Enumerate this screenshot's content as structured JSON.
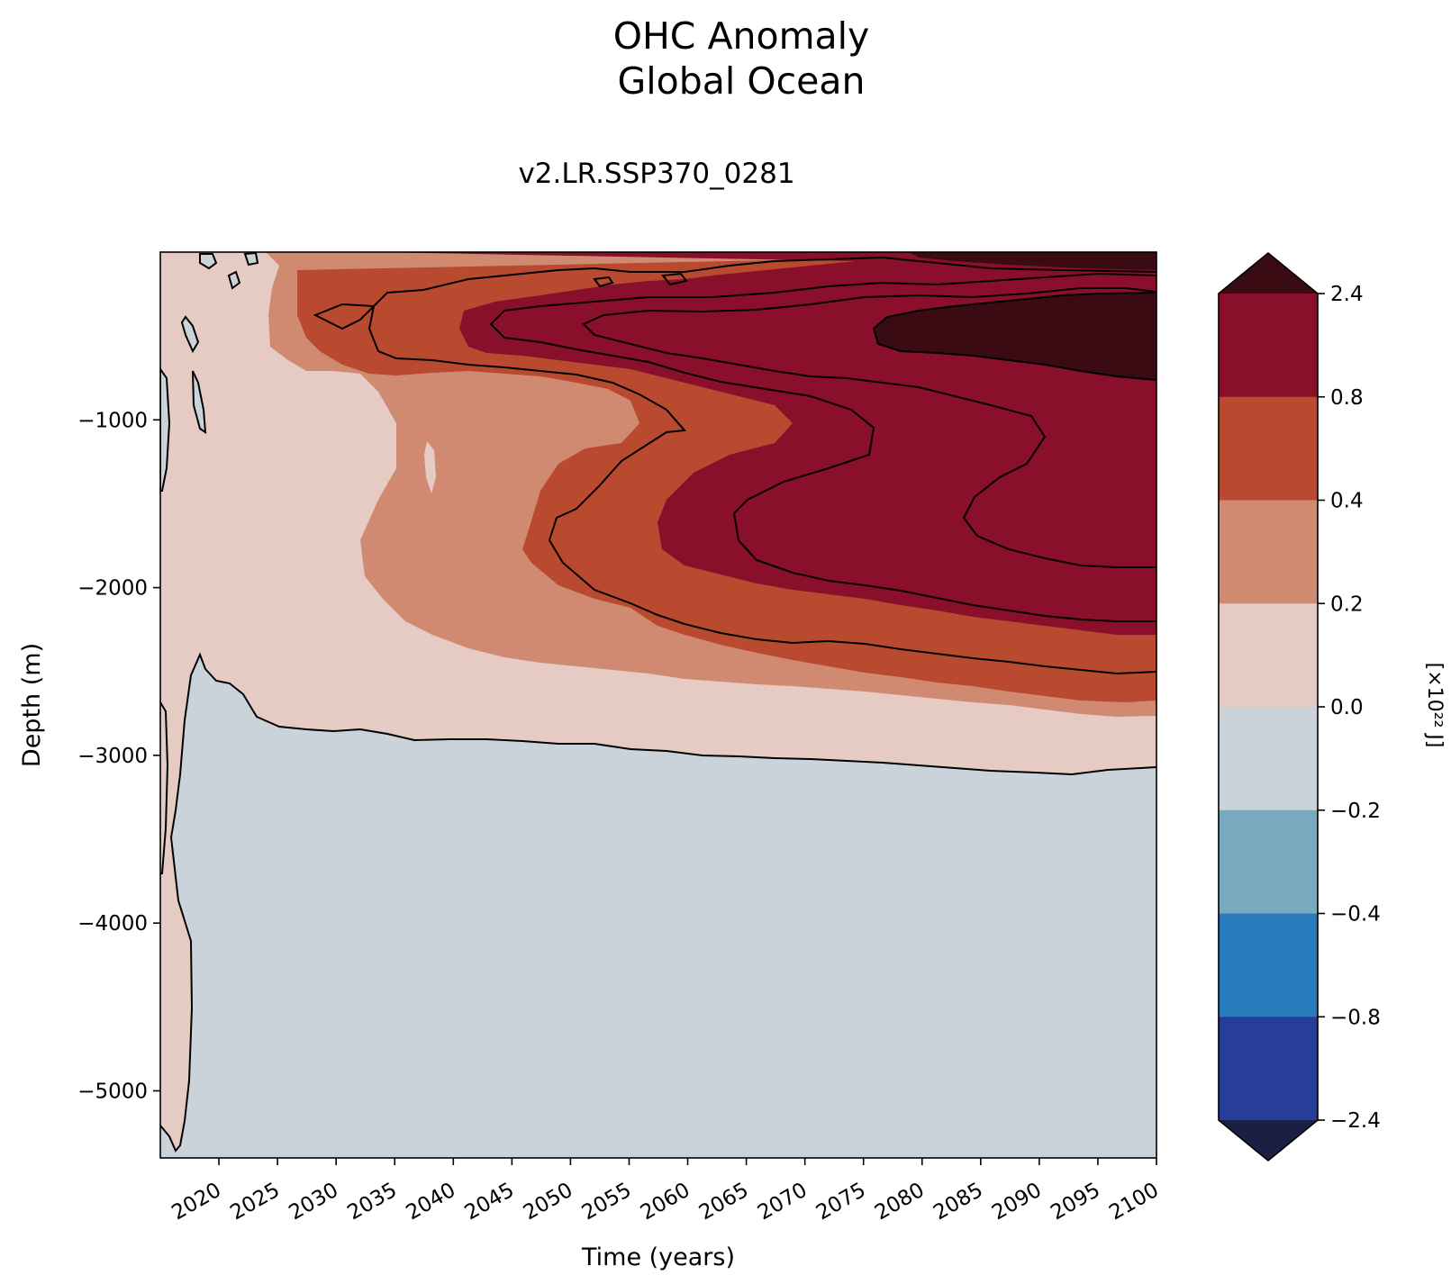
{
  "chart_data": {
    "type": "contourf",
    "title": "OHC Anomaly",
    "title_line2": "Global Ocean",
    "subtitle": "v2.LR.SSP370_0281",
    "xlabel": "Time (years)",
    "ylabel": "Depth (m)",
    "xlim": [
      2015,
      2100
    ],
    "ylim": [
      -5400,
      0
    ],
    "xticks": [
      2020,
      2025,
      2030,
      2035,
      2040,
      2045,
      2050,
      2055,
      2060,
      2065,
      2070,
      2075,
      2080,
      2085,
      2090,
      2095,
      2100
    ],
    "yticks": [
      -5000,
      -4000,
      -3000,
      -2000,
      -1000
    ],
    "colorbar": {
      "label": "[×10²² J]",
      "ticks": [
        "2.4",
        "0.8",
        "0.4",
        "0.2",
        "0.0",
        "−0.2",
        "−0.4",
        "−0.8",
        "−2.4"
      ],
      "levels": [
        2.4,
        0.8,
        0.4,
        0.2,
        0.0,
        -0.2,
        -0.4,
        -0.8,
        -2.4
      ],
      "band_colors": [
        "#8a0f2a",
        "#b94a30",
        "#d18a72",
        "#e6cbc5",
        "#cad3da",
        "#78aabf",
        "#2a7bbc",
        "#283c9a"
      ],
      "extend_top_color": "#3b0b13",
      "extend_bottom_color": "#1a1f44"
    },
    "contour_regions": [
      {
        "level_min": 0.0,
        "description": "surface to ~-2800 m (warming)",
        "color": "#e6cbc5"
      },
      {
        "level_min": 0.2,
        "description": "spreads to ~-2700 m by 2100",
        "color": "#d18a72"
      },
      {
        "level_min": 0.4,
        "description": "spreads to ~-2550 m by 2100",
        "color": "#b94a30"
      },
      {
        "level_min": 0.8,
        "description": "spreads to ~-2250 m by 2100",
        "color": "#8a0f2a"
      },
      {
        "level_min": 2.4,
        "description": "upper ~-800 m after 2078",
        "color": "#3b0b13"
      }
    ]
  }
}
